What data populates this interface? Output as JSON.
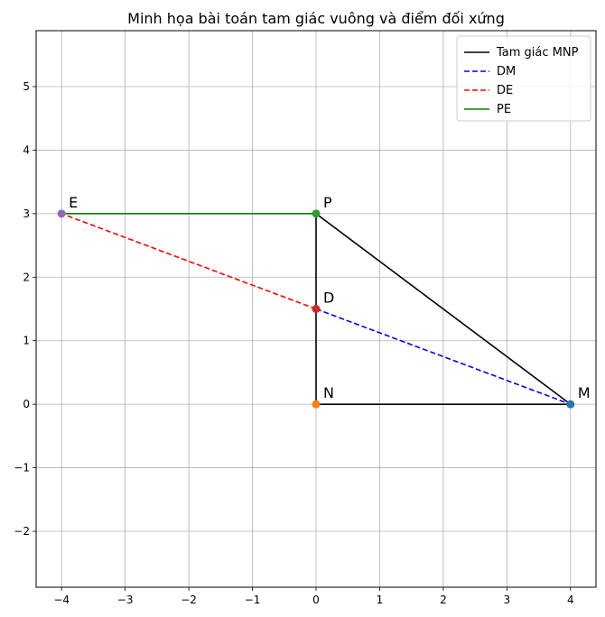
{
  "chart_data": {
    "type": "line",
    "title": "Minh họa bài toán tam giác vuông và điểm đối xứng",
    "xlabel": "",
    "ylabel": "",
    "xlim": [
      -4.4,
      4.4
    ],
    "ylim": [
      -2.88,
      5.88
    ],
    "xticks": [
      -4,
      -3,
      -2,
      -1,
      0,
      1,
      2,
      3,
      4
    ],
    "yticks": [
      -2,
      -1,
      0,
      1,
      2,
      3,
      4,
      5
    ],
    "grid": true,
    "legend_position": "top-right",
    "series": [
      {
        "name": "Tam giác MNP",
        "color": "#000000",
        "dash": "solid",
        "x": [
          4,
          0,
          0,
          4
        ],
        "y": [
          0,
          0,
          3,
          0
        ]
      },
      {
        "name": "DM",
        "color": "#0000ff",
        "dash": "dashed",
        "x": [
          0,
          4
        ],
        "y": [
          1.5,
          0
        ]
      },
      {
        "name": "DE",
        "color": "#ff0000",
        "dash": "dashed",
        "x": [
          0,
          -4
        ],
        "y": [
          1.5,
          3
        ]
      },
      {
        "name": "PE",
        "color": "#008000",
        "dash": "solid",
        "x": [
          0,
          -4
        ],
        "y": [
          3,
          3
        ]
      }
    ],
    "points": [
      {
        "label": "M",
        "x": 4,
        "y": 0,
        "color": "#1f77b4"
      },
      {
        "label": "N",
        "x": 0,
        "y": 0,
        "color": "#ff7f0e"
      },
      {
        "label": "P",
        "x": 0,
        "y": 3,
        "color": "#2ca02c"
      },
      {
        "label": "D",
        "x": 0,
        "y": 1.5,
        "color": "#d62728"
      },
      {
        "label": "E",
        "x": -4,
        "y": 3,
        "color": "#9467bd"
      }
    ]
  }
}
